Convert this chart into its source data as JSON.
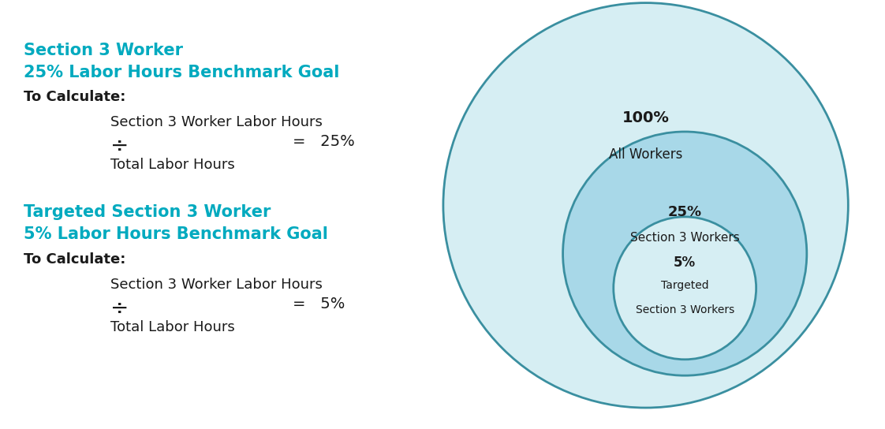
{
  "bg_color": "#ffffff",
  "teal_color": "#00AABF",
  "black_color": "#1a1a1a",
  "title1_line1": "Section 3 Worker",
  "title1_line2": "25% Labor Hours Benchmark Goal",
  "label_to_calculate": "To Calculate:",
  "numerator1": "Section 3 Worker Labor Hours",
  "div_symbol": "÷",
  "denominator1": "Total Labor Hours",
  "equals1": "=   25%",
  "title2_line1": "Targeted Section 3 Worker",
  "title2_line2": "5% Labor Hours Benchmark Goal",
  "numerator2": "Section 3 Worker Labor Hours",
  "denominator2": "Total Labor Hours",
  "equals2": "=   5%",
  "circle_outer_fill": "#d6eef3",
  "circle_mid_fill": "#a8d8e8",
  "circle_inner_fill": "#d6eef3",
  "circle_edge_color": "#3a8fa0",
  "label_100_pct": "100%",
  "label_100_sub": "All Workers",
  "label_25_pct": "25%",
  "label_25_sub": "Section 3 Workers",
  "label_5_pct": "5%",
  "label_5_sub_line1": "Targeted",
  "label_5_sub_line2": "Section 3 Workers"
}
